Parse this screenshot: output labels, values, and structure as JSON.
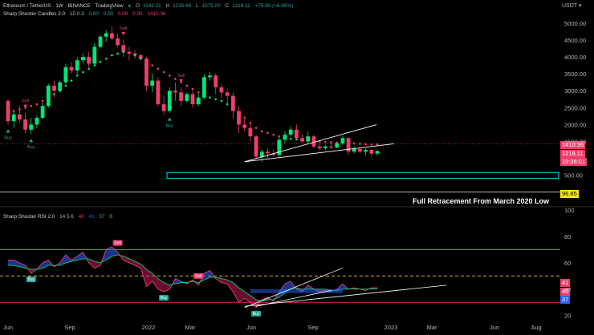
{
  "header": {
    "title": "Ethereum / TetherUS · 1W · BINANCE · TradingView",
    "ohlc": {
      "o_label": "O",
      "o": "1142.21",
      "h_label": "H",
      "h": "1235.66",
      "l_label": "L",
      "l": "1075.00",
      "c_label": "C",
      "c": "1218.11",
      "change": "+75.90 (+6.65%)"
    },
    "indicator1": "Sharp Shooter Candles 2.0",
    "indicator1_params": "15 0.3",
    "indicator1_values": [
      "0.00",
      "0.00",
      "0.00",
      "0.00"
    ],
    "indicator1_last": "1410.36",
    "indicator2": "Sharp Shooter RSI 2.0",
    "indicator2_params": "14 5 6",
    "indicator2_values": [
      "40",
      "41",
      "37",
      "0"
    ]
  },
  "currency": "USDT",
  "price_tags": {
    "upper": "1410.36",
    "last": "1218.11",
    "countdown": "19:36:01",
    "low": "96.85"
  },
  "annotation": "Full Retracement From March 2020 Low",
  "rsi_tags": [
    "41",
    "40",
    "37"
  ],
  "colors": {
    "bull": "#26a69a",
    "bull_bright": "#00e676",
    "bear": "#ef3e6c",
    "box": "#00bcd4",
    "overbought": "#4caf50",
    "oversold": "#e91e63",
    "mid": "#f5d33b"
  },
  "chart_data": [
    {
      "type": "candlestick",
      "title": "Ethereum / TetherUS",
      "ylabel": "USDT",
      "x_tick_labels": [
        "Jun",
        "Sep",
        "2022",
        "Mar",
        "Jun",
        "Sep",
        "2023",
        "Mar",
        "Jun",
        "Aug"
      ],
      "y_ticks": [
        5000,
        4500,
        4000,
        3500,
        3000,
        2500,
        2000,
        1500,
        500
      ],
      "ylim": [
        -100,
        5400
      ],
      "candles": [
        [
          2700,
          2750,
          2000,
          2100
        ],
        [
          2100,
          2450,
          1900,
          2300
        ],
        [
          2300,
          2550,
          2050,
          2150
        ],
        [
          2150,
          2350,
          1750,
          1850
        ],
        [
          1850,
          2200,
          1720,
          2000
        ],
        [
          2000,
          2280,
          1900,
          2200
        ],
        [
          2200,
          2650,
          2150,
          2550
        ],
        [
          2550,
          3200,
          2500,
          3150
        ],
        [
          3150,
          3300,
          2800,
          3000
        ],
        [
          3000,
          3300,
          2950,
          3250
        ],
        [
          3250,
          3800,
          3200,
          3700
        ],
        [
          3700,
          3850,
          3500,
          3600
        ],
        [
          3600,
          4000,
          3500,
          3900
        ],
        [
          3900,
          4100,
          3800,
          4000
        ],
        [
          4000,
          4150,
          3700,
          3800
        ],
        [
          3800,
          4400,
          3750,
          4300
        ],
        [
          4300,
          4650,
          4250,
          4600
        ],
        [
          4600,
          4800,
          4450,
          4700
        ],
        [
          4700,
          4900,
          4500,
          4550
        ],
        [
          4550,
          4700,
          4300,
          4350
        ],
        [
          4350,
          4500,
          4000,
          4150
        ],
        [
          4150,
          4300,
          3900,
          4100
        ],
        [
          4100,
          4200,
          3950,
          4050
        ],
        [
          4050,
          4100,
          3900,
          3950
        ],
        [
          3950,
          4000,
          3000,
          3150
        ],
        [
          3150,
          3500,
          2950,
          3300
        ],
        [
          3300,
          3400,
          2550,
          2600
        ],
        [
          2600,
          2850,
          2300,
          2400
        ],
        [
          2400,
          3100,
          2350,
          3000
        ],
        [
          3000,
          3250,
          2700,
          2950
        ],
        [
          2950,
          3100,
          2550,
          2700
        ],
        [
          2700,
          2950,
          2650,
          2900
        ],
        [
          2900,
          3000,
          2500,
          2600
        ],
        [
          2600,
          2900,
          2550,
          2800
        ],
        [
          2800,
          3500,
          2750,
          3400
        ],
        [
          3400,
          3550,
          3300,
          3450
        ],
        [
          3450,
          3500,
          2900,
          3100
        ],
        [
          3100,
          3200,
          2800,
          2950
        ],
        [
          2950,
          3050,
          2600,
          2850
        ],
        [
          2850,
          2950,
          2200,
          2400
        ],
        [
          2400,
          2550,
          1750,
          2000
        ],
        [
          2000,
          2150,
          1800,
          1900
        ],
        [
          1900,
          2050,
          1500,
          1650
        ],
        [
          1650,
          1700,
          980,
          1050
        ],
        [
          1050,
          1250,
          900,
          1200
        ],
        [
          1200,
          1300,
          1000,
          1150
        ],
        [
          1150,
          1250,
          1050,
          1100
        ],
        [
          1100,
          1650,
          1050,
          1550
        ],
        [
          1550,
          1800,
          1450,
          1700
        ],
        [
          1700,
          1950,
          1650,
          1850
        ],
        [
          1850,
          2000,
          1550,
          1600
        ],
        [
          1600,
          1700,
          1450,
          1500
        ],
        [
          1500,
          1800,
          1450,
          1650
        ],
        [
          1650,
          1700,
          1300,
          1350
        ],
        [
          1350,
          1450,
          1250,
          1300
        ],
        [
          1300,
          1400,
          1250,
          1350
        ],
        [
          1350,
          1450,
          1280,
          1320
        ],
        [
          1320,
          1500,
          1300,
          1450
        ],
        [
          1450,
          1650,
          1400,
          1600
        ],
        [
          1600,
          1620,
          1100,
          1200
        ],
        [
          1200,
          1350,
          1150,
          1280
        ],
        [
          1280,
          1300,
          1150,
          1200
        ],
        [
          1200,
          1300,
          1080,
          1250
        ],
        [
          1250,
          1280,
          1050,
          1142
        ],
        [
          1142,
          1236,
          1075,
          1218
        ]
      ],
      "trail_stop": [
        2350,
        2400,
        2450,
        2500,
        2550,
        2600,
        2700,
        2800,
        2900,
        3000,
        3150,
        3300,
        3450,
        3550,
        3650,
        3750,
        3850,
        3950,
        4050,
        4100,
        4150,
        4120,
        4050,
        3950,
        3850,
        3750,
        3650,
        3550,
        3450,
        3350,
        3250,
        3150,
        3050,
        2950,
        2850,
        2800,
        2750,
        2700,
        2600,
        2500,
        2350,
        2200,
        2050,
        1900,
        1800,
        1750,
        1700,
        1650,
        1600,
        1580,
        1560,
        1540,
        1520,
        1510,
        1500,
        1490,
        1480,
        1470,
        1460,
        1450,
        1440,
        1430,
        1420,
        1410,
        1410
      ],
      "signals": [
        {
          "label": "Sell",
          "index": 3
        },
        {
          "label": "Buy",
          "index": 0
        },
        {
          "label": "Buy",
          "index": 4
        },
        {
          "label": "Sell",
          "index": 20
        },
        {
          "label": "Sell",
          "index": 30
        },
        {
          "label": "Buy",
          "index": 28
        }
      ],
      "support_line": [
        [
          41,
          900
        ],
        [
          59,
          1760
        ]
      ],
      "support_line2": [
        [
          41,
          900
        ],
        [
          62,
          1430
        ]
      ],
      "zone": [
        410,
        580
      ],
      "low_line": 96.85
    },
    {
      "type": "line",
      "title": "Sharp Shooter RSI 2.0",
      "y_ticks": [
        100,
        80,
        60,
        40,
        20
      ],
      "ylim": [
        18,
        100
      ],
      "overbought": 70,
      "oversold": 30,
      "midline": 50,
      "rsi": [
        62,
        62,
        60,
        58,
        52,
        55,
        60,
        62,
        57,
        60,
        66,
        62,
        65,
        68,
        60,
        56,
        58,
        70,
        72,
        68,
        62,
        60,
        58,
        56,
        42,
        46,
        40,
        38,
        40,
        48,
        46,
        44,
        47,
        43,
        52,
        54,
        48,
        45,
        44,
        38,
        30,
        33,
        30,
        26,
        32,
        34,
        31,
        38,
        44,
        46,
        40,
        38,
        43,
        40,
        38,
        39,
        38,
        40,
        44,
        40,
        41,
        40,
        39,
        41,
        41
      ],
      "signal": [
        58,
        58,
        57,
        56,
        55,
        55,
        56,
        58,
        58,
        58,
        60,
        61,
        62,
        63,
        63,
        61,
        60,
        62,
        65,
        66,
        65,
        63,
        61,
        59,
        55,
        52,
        48,
        45,
        43,
        44,
        45,
        45,
        46,
        45,
        47,
        49,
        49,
        48,
        47,
        45,
        41,
        38,
        35,
        32,
        31,
        32,
        32,
        34,
        37,
        40,
        41,
        40,
        40,
        40,
        40,
        40,
        39,
        39,
        40,
        40,
        40,
        40,
        40,
        40,
        40
      ],
      "signals": [
        {
          "label": "Buy",
          "index": 4
        },
        {
          "label": "Sell",
          "index": 19
        },
        {
          "label": "Buy",
          "index": 27
        },
        {
          "label": "Sell",
          "index": 33
        },
        {
          "label": "Buy",
          "index": 43
        }
      ],
      "trendlines": [
        [
          [
            41,
            26
          ],
          [
            58,
            56
          ]
        ],
        [
          [
            41,
            27
          ],
          [
            70,
            43
          ]
        ],
        [
          [
            43,
            27
          ],
          [
            56,
            39
          ]
        ]
      ],
      "zone_box": [
        [
          42,
          37
        ],
        [
          58,
          40
        ]
      ]
    }
  ]
}
